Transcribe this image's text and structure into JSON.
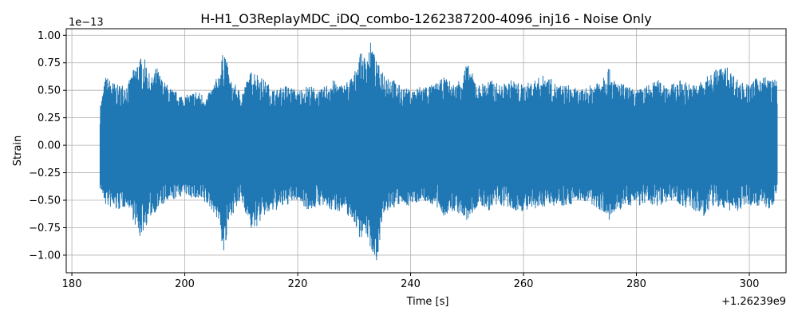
{
  "chart_data": {
    "type": "line",
    "title": "H-H1_O3ReplayMDC_iDQ_combo-1262387200-4096_inj16 - Noise Only",
    "xlabel": "Time [s]",
    "ylabel": "Strain",
    "y_scale_label": "1e−13",
    "x_offset_label": "+1.26239e9",
    "xlim": [
      179,
      306.5
    ],
    "ylim": [
      -1.16,
      1.06
    ],
    "x_ticks": [
      180,
      200,
      220,
      240,
      260,
      280,
      300
    ],
    "x_tick_labels": [
      "180",
      "200",
      "220",
      "240",
      "260",
      "280",
      "300"
    ],
    "y_ticks": [
      -1.0,
      -0.75,
      -0.5,
      -0.25,
      0.0,
      0.25,
      0.5,
      0.75,
      1.0
    ],
    "y_tick_labels": [
      "−1.00",
      "−0.75",
      "−0.50",
      "−0.25",
      "0.00",
      "0.25",
      "0.50",
      "0.75",
      "1.00"
    ],
    "grid": true,
    "series": [
      {
        "color": "#1f77b4",
        "x_range": [
          185,
          305
        ],
        "envelope": {
          "x": [
            185,
            186,
            188,
            190,
            191,
            192,
            193,
            194,
            195,
            196,
            198,
            200,
            202,
            204,
            205,
            206,
            207,
            208,
            209,
            210,
            212,
            214,
            216,
            218,
            220,
            222,
            224,
            226,
            228,
            230,
            231,
            232,
            233,
            234,
            235,
            236,
            238,
            240,
            242,
            244,
            246,
            248,
            250,
            252,
            254,
            256,
            258,
            260,
            262,
            264,
            266,
            268,
            270,
            272,
            274,
            275,
            276,
            278,
            280,
            282,
            284,
            286,
            288,
            290,
            292,
            294,
            296,
            298,
            300,
            302,
            304,
            305
          ],
          "upper": [
            0.35,
            0.63,
            0.55,
            0.57,
            0.7,
            0.8,
            0.78,
            0.6,
            0.72,
            0.6,
            0.5,
            0.45,
            0.5,
            0.45,
            0.55,
            0.65,
            0.9,
            0.6,
            0.55,
            0.48,
            0.7,
            0.6,
            0.5,
            0.55,
            0.5,
            0.55,
            0.5,
            0.6,
            0.55,
            0.65,
            0.85,
            0.8,
            0.95,
            0.75,
            0.7,
            0.65,
            0.55,
            0.5,
            0.55,
            0.55,
            0.62,
            0.55,
            0.75,
            0.55,
            0.6,
            0.55,
            0.6,
            0.55,
            0.6,
            0.65,
            0.55,
            0.55,
            0.5,
            0.55,
            0.65,
            0.72,
            0.6,
            0.55,
            0.5,
            0.55,
            0.6,
            0.55,
            0.6,
            0.55,
            0.6,
            0.7,
            0.72,
            0.6,
            0.55,
            0.65,
            0.6,
            0.6
          ],
          "lower": [
            -0.4,
            -0.55,
            -0.6,
            -0.55,
            -0.7,
            -0.85,
            -0.75,
            -0.65,
            -0.6,
            -0.55,
            -0.5,
            -0.45,
            -0.5,
            -0.55,
            -0.6,
            -0.7,
            -1.03,
            -0.65,
            -0.6,
            -0.5,
            -0.8,
            -0.65,
            -0.6,
            -0.55,
            -0.5,
            -0.6,
            -0.55,
            -0.6,
            -0.6,
            -0.7,
            -0.85,
            -0.8,
            -0.95,
            -1.07,
            -0.7,
            -0.6,
            -0.55,
            -0.55,
            -0.5,
            -0.55,
            -0.65,
            -0.6,
            -0.7,
            -0.55,
            -0.6,
            -0.55,
            -0.6,
            -0.6,
            -0.6,
            -0.55,
            -0.55,
            -0.55,
            -0.5,
            -0.55,
            -0.6,
            -0.7,
            -0.65,
            -0.55,
            -0.55,
            -0.55,
            -0.55,
            -0.5,
            -0.55,
            -0.6,
            -0.65,
            -0.55,
            -0.6,
            -0.6,
            -0.55,
            -0.55,
            -0.6,
            -0.4
          ]
        }
      }
    ]
  }
}
